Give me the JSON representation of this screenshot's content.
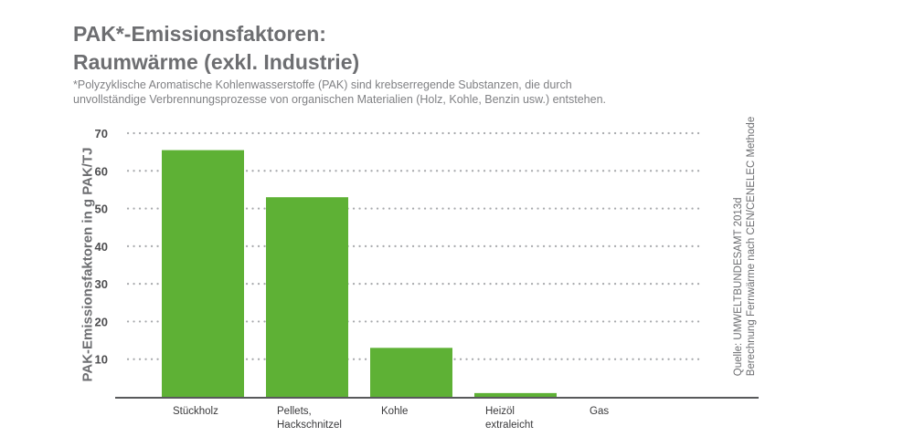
{
  "chart_data": {
    "type": "bar",
    "title_lines": [
      "PAK*-Emissionsfaktoren:",
      "Raumwärme (exkl. Industrie)"
    ],
    "subtitle_lines": [
      "*Polyzyklische Aromatische Kohlenwasserstoffe (PAK) sind krebserregende Substanzen, die durch",
      "unvollständige Verbrennungsprozesse von organischen Materialien (Holz, Kohle, Benzin usw.) entstehen."
    ],
    "ylabel": "PAK-Emissionsfaktoren in g PAK/TJ",
    "xlabel": "",
    "categories": [
      [
        "Stückholz"
      ],
      [
        "Pellets,",
        "Hackschnitzel"
      ],
      [
        "Kohle"
      ],
      [
        "Heizöl",
        "extraleicht"
      ],
      [
        "Gas"
      ]
    ],
    "values": [
      65.5,
      53,
      13,
      1,
      0
    ],
    "ylim": [
      0,
      70
    ],
    "yticks": [
      10,
      20,
      30,
      40,
      50,
      60,
      70
    ],
    "grid": "dotted horizontal",
    "legend": "none",
    "source_lines": [
      "Quelle: UMWELTBUNDESAMT 2013d",
      "Berechnung Fernwärme nach CEN/CENELEC Methode"
    ],
    "colors": {
      "bar": "#5eb135",
      "axis": "#58595b",
      "grid": "#a7a9ac",
      "text": "#6d6e71"
    }
  }
}
